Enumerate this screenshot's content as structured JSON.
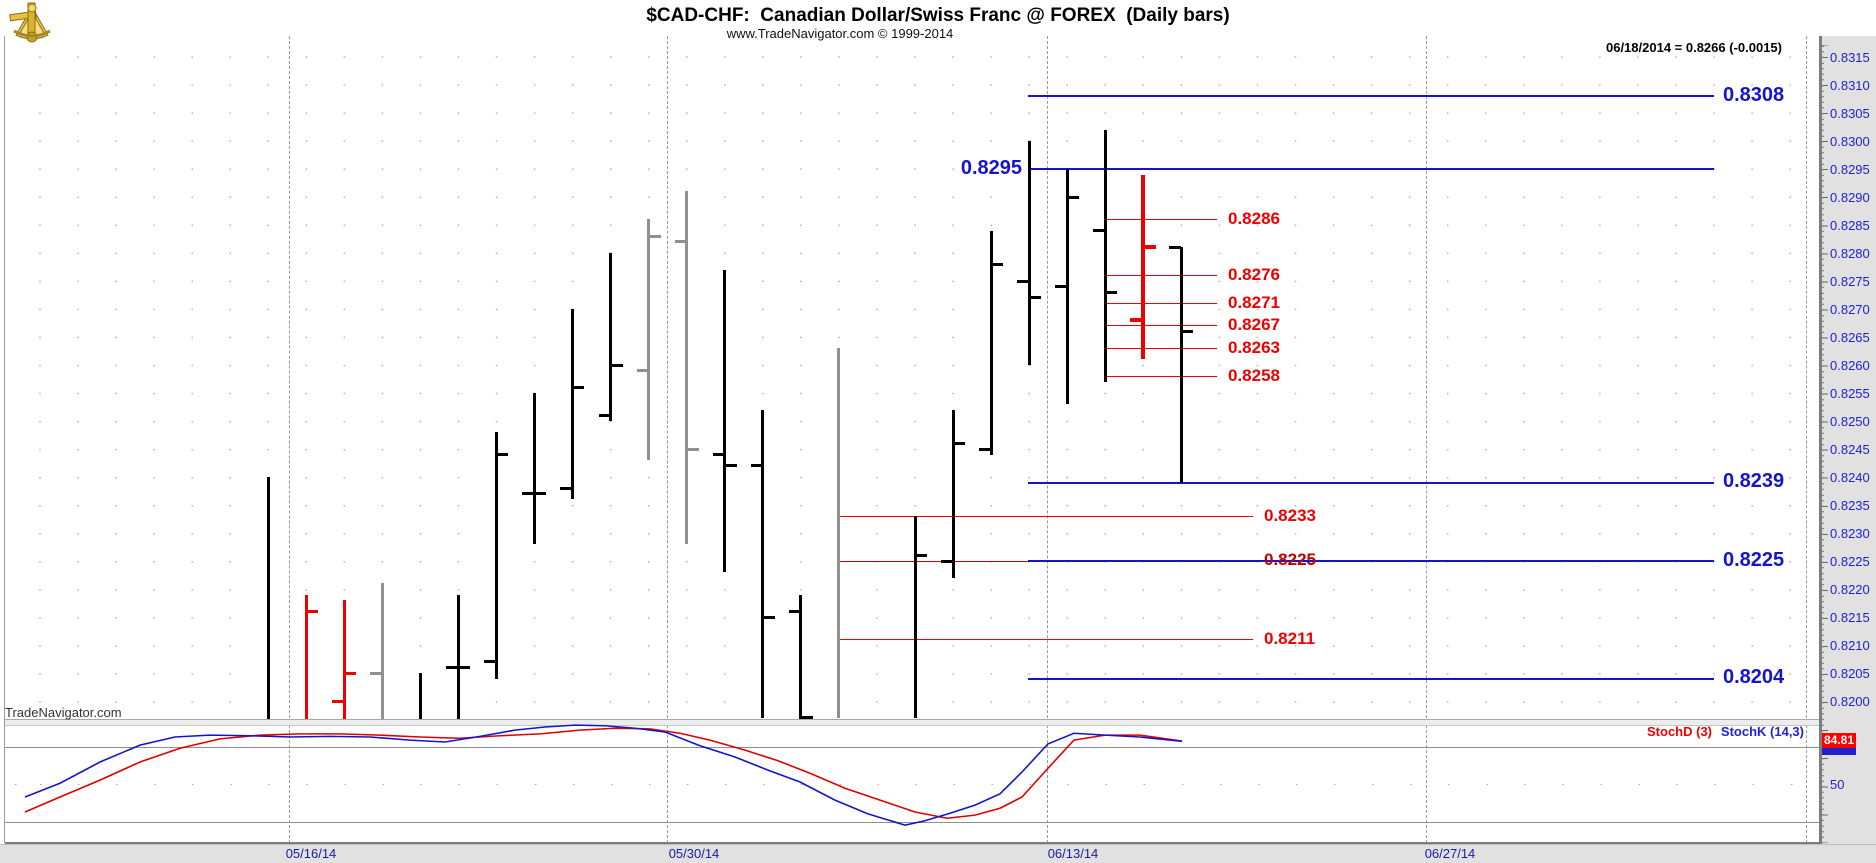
{
  "header": {
    "title": "$CAD-CHF:  Canadian Dollar/Swiss Franc @ FOREX  (Daily bars)",
    "subtitle": "www.TradeNavigator.com © 1999-2014",
    "quote": "06/18/2014 = 0.8266 (-0.0015)"
  },
  "watermark": "TradeNavigator.com",
  "logo_icon": "gold-sextant-logo",
  "colors": {
    "blue_line": "#1414cc",
    "red_line": "#ee0000",
    "dark_red_line": "#c00000",
    "axis_text": "#2222cc",
    "date_text": "#1b1b9e",
    "bar_black": "#000000",
    "bar_gray": "#909090",
    "bar_red": "#ee0000",
    "stoch_d": "#dd0000",
    "stoch_k": "#1414cc",
    "badge_red": "#ff0000",
    "badge_blue": "#2222cc"
  },
  "chart_data": {
    "type": "bar",
    "subtype": "ohlc-daily-bars",
    "symbol": "$CAD-CHF",
    "title": "$CAD-CHF:  Canadian Dollar/Swiss Franc @ FOREX  (Daily bars)",
    "last_update": {
      "date": "06/18/2014",
      "close": 0.8266,
      "change": -0.0015
    },
    "price_axis": {
      "min": 0.82,
      "max": 0.8315,
      "step": 0.0005,
      "ticks": [
        "0.8315",
        "0.8310",
        "0.8305",
        "0.8300",
        "0.8295",
        "0.8290",
        "0.8285",
        "0.8280",
        "0.8275",
        "0.8270",
        "0.8265",
        "0.8260",
        "0.8255",
        "0.8250",
        "0.8245",
        "0.8240",
        "0.8235",
        "0.8230",
        "0.8225",
        "0.8220",
        "0.8215",
        "0.8210",
        "0.8205",
        "0.8200"
      ]
    },
    "date_axis": [
      "05/16/14",
      "05/30/14",
      "06/13/14",
      "06/27/14"
    ],
    "bars": [
      {
        "slot": 0,
        "color": "black",
        "h": 0.824,
        "l": 0.8196,
        "o": null,
        "c": null
      },
      {
        "slot": 1,
        "color": "red",
        "h": 0.8219,
        "l": 0.8196,
        "o": null,
        "c": 0.8216
      },
      {
        "slot": 2,
        "color": "red",
        "h": 0.8218,
        "l": 0.8196,
        "o": 0.82,
        "c": 0.8205
      },
      {
        "slot": 3,
        "color": "gray",
        "h": 0.8221,
        "l": 0.8196,
        "o": 0.8205,
        "c": null
      },
      {
        "slot": 4,
        "color": "black",
        "h": 0.8205,
        "l": 0.8196,
        "o": null,
        "c": null
      },
      {
        "slot": 5,
        "color": "black",
        "h": 0.8219,
        "l": 0.8196,
        "o": 0.8206,
        "c": 0.8206
      },
      {
        "slot": 6,
        "color": "black",
        "h": 0.8248,
        "l": 0.8204,
        "o": 0.8207,
        "c": 0.8244
      },
      {
        "slot": 7,
        "color": "black",
        "h": 0.8255,
        "l": 0.8228,
        "o": 0.8237,
        "c": 0.8237
      },
      {
        "slot": 8,
        "color": "black",
        "h": 0.827,
        "l": 0.8236,
        "o": 0.8238,
        "c": 0.8256
      },
      {
        "slot": 9,
        "color": "black",
        "h": 0.828,
        "l": 0.825,
        "o": 0.8251,
        "c": 0.826
      },
      {
        "slot": 10,
        "color": "gray",
        "h": 0.8286,
        "l": 0.8243,
        "o": 0.8259,
        "c": 0.8283
      },
      {
        "slot": 11,
        "color": "gray",
        "h": 0.8291,
        "l": 0.8228,
        "o": 0.8282,
        "c": 0.8245
      },
      {
        "slot": 12,
        "color": "black",
        "h": 0.8277,
        "l": 0.8223,
        "o": 0.8244,
        "c": 0.8242
      },
      {
        "slot": 13,
        "color": "black",
        "h": 0.8252,
        "l": 0.8197,
        "o": 0.8242,
        "c": 0.8215
      },
      {
        "slot": 14,
        "color": "black",
        "h": 0.8219,
        "l": 0.8196,
        "o": 0.8216,
        "c": 0.8197
      },
      {
        "slot": 15,
        "color": "gray",
        "h": 0.8263,
        "l": 0.8197,
        "o": null,
        "c": null
      },
      {
        "slot": 17,
        "color": "black",
        "h": 0.8233,
        "l": 0.8197,
        "o": null,
        "c": 0.8226
      },
      {
        "slot": 18,
        "color": "black",
        "h": 0.8252,
        "l": 0.8222,
        "o": 0.8225,
        "c": 0.8246
      },
      {
        "slot": 19,
        "color": "black",
        "h": 0.8284,
        "l": 0.8244,
        "o": 0.8245,
        "c": 0.8278
      },
      {
        "slot": 20,
        "color": "black",
        "h": 0.83,
        "l": 0.826,
        "o": 0.8275,
        "c": 0.8272
      },
      {
        "slot": 21,
        "color": "black",
        "h": 0.8295,
        "l": 0.8253,
        "o": 0.8274,
        "c": 0.829
      },
      {
        "slot": 22,
        "color": "black",
        "h": 0.8302,
        "l": 0.8257,
        "o": 0.8284,
        "c": 0.8273
      },
      {
        "slot": 23,
        "color": "red",
        "bold": true,
        "h": 0.8294,
        "l": 0.8261,
        "o": 0.8268,
        "c": 0.8281
      },
      {
        "slot": 24,
        "color": "black",
        "h": 0.8281,
        "l": 0.8239,
        "o": 0.8281,
        "c": 0.8266
      }
    ],
    "blue_levels": [
      {
        "label": "0.8308",
        "value": 0.8308,
        "side": "right"
      },
      {
        "label": "0.8295",
        "value": 0.8295,
        "side": "left"
      },
      {
        "label": "0.8239",
        "value": 0.8239,
        "side": "right"
      },
      {
        "label": "0.8225",
        "value": 0.8225,
        "side": "right"
      },
      {
        "label": "0.8204",
        "value": 0.8204,
        "side": "right"
      }
    ],
    "red_cluster_levels": [
      {
        "label": "0.8286",
        "value": 0.8286
      },
      {
        "label": "0.8276",
        "value": 0.8276
      },
      {
        "label": "0.8271",
        "value": 0.8271
      },
      {
        "label": "0.8267",
        "value": 0.8267
      },
      {
        "label": "0.8263",
        "value": 0.8263
      },
      {
        "label": "0.8258",
        "value": 0.8258
      }
    ],
    "red_mid_levels": [
      {
        "label": "0.8233",
        "value": 0.8233,
        "shade": "bright"
      },
      {
        "label": "0.8225",
        "value": 0.8225,
        "shade": "dark"
      },
      {
        "label": "0.8211",
        "value": 0.8211,
        "shade": "bright"
      }
    ],
    "stochastic": {
      "d_label": "StochD (3)",
      "k_label": "StochK (14,3)",
      "d_last_label": "84.81",
      "axis_label_50": "50",
      "levels": [
        80,
        20
      ],
      "k": [
        [
          25,
          40
        ],
        [
          60,
          51
        ],
        [
          100,
          68
        ],
        [
          140,
          81.5
        ],
        [
          175,
          88
        ],
        [
          210,
          89.5
        ],
        [
          250,
          89
        ],
        [
          290,
          88
        ],
        [
          330,
          88.5
        ],
        [
          370,
          88
        ],
        [
          410,
          85.5
        ],
        [
          445,
          84
        ],
        [
          480,
          88.5
        ],
        [
          515,
          93.5
        ],
        [
          545,
          96
        ],
        [
          575,
          97.5
        ],
        [
          605,
          97
        ],
        [
          635,
          95
        ],
        [
          665,
          92
        ],
        [
          700,
          81
        ],
        [
          735,
          72
        ],
        [
          768,
          61.5
        ],
        [
          800,
          52
        ],
        [
          835,
          37.5
        ],
        [
          868,
          26.5
        ],
        [
          905,
          17.5
        ],
        [
          925,
          21
        ],
        [
          950,
          27
        ],
        [
          975,
          33.5
        ],
        [
          1000,
          42.5
        ],
        [
          1022,
          60
        ],
        [
          1048,
          82.5
        ],
        [
          1074,
          91
        ],
        [
          1105,
          89.5
        ],
        [
          1140,
          88
        ],
        [
          1182,
          84.5
        ]
      ],
      "d": [
        [
          25,
          28
        ],
        [
          60,
          40
        ],
        [
          100,
          53.5
        ],
        [
          140,
          68
        ],
        [
          180,
          79
        ],
        [
          220,
          86.5
        ],
        [
          260,
          89.5
        ],
        [
          300,
          90.5
        ],
        [
          340,
          90.5
        ],
        [
          380,
          89.5
        ],
        [
          420,
          88
        ],
        [
          460,
          87
        ],
        [
          500,
          89
        ],
        [
          540,
          90.5
        ],
        [
          580,
          93.5
        ],
        [
          615,
          95
        ],
        [
          650,
          94.5
        ],
        [
          680,
          91
        ],
        [
          710,
          85.5
        ],
        [
          745,
          77.5
        ],
        [
          778,
          69
        ],
        [
          810,
          59
        ],
        [
          845,
          47
        ],
        [
          880,
          37.5
        ],
        [
          915,
          28
        ],
        [
          947,
          23
        ],
        [
          975,
          25.5
        ],
        [
          1000,
          31
        ],
        [
          1022,
          40
        ],
        [
          1048,
          63
        ],
        [
          1074,
          85.5
        ],
        [
          1105,
          89.5
        ],
        [
          1140,
          89.5
        ],
        [
          1182,
          84.8
        ]
      ]
    }
  }
}
